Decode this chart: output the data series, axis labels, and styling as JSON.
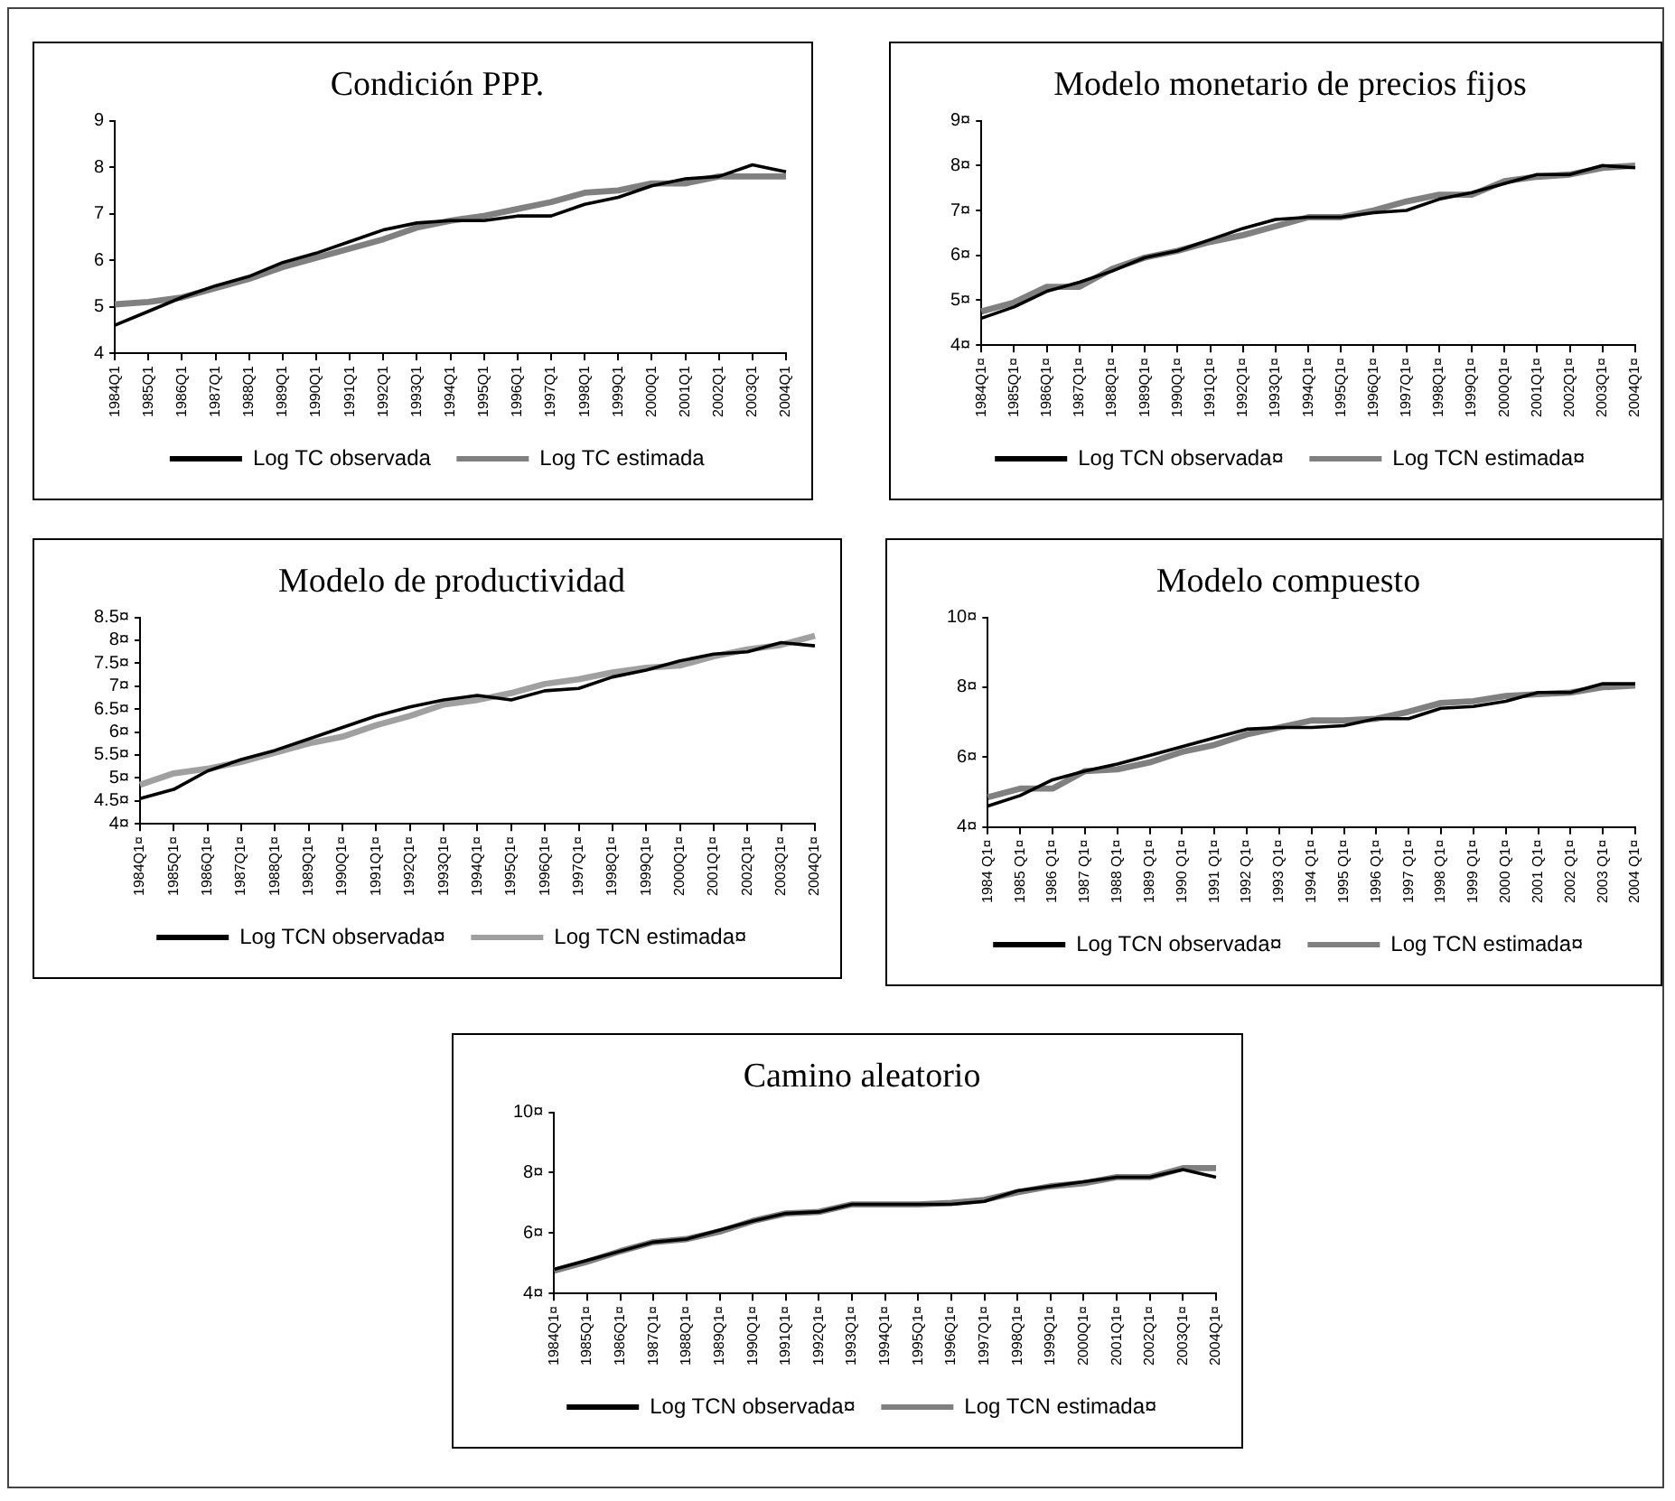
{
  "chart_data": [
    {
      "type": "line",
      "title": "Condición PPP.",
      "categories": [
        "1984Q1",
        "1985Q1",
        "1986Q1",
        "1987Q1",
        "1988Q1",
        "1989Q1",
        "1990Q1",
        "1991Q1",
        "1992Q1",
        "1993Q1",
        "1994Q1",
        "1995Q1",
        "1996Q1",
        "1997Q1",
        "1998Q1",
        "1999Q1",
        "2000Q1",
        "2001Q1",
        "2002Q1",
        "2003Q1",
        "2004Q1"
      ],
      "ylim": [
        4,
        9
      ],
      "yticks": [
        4,
        5,
        6,
        7,
        8,
        9
      ],
      "grid": false,
      "legend": "bottom",
      "marker": "none",
      "series": [
        {
          "name": "Log TC observada",
          "color": "#000000",
          "values": [
            4.6,
            4.9,
            5.2,
            5.45,
            5.65,
            5.95,
            6.15,
            6.4,
            6.65,
            6.8,
            6.85,
            6.85,
            6.95,
            6.95,
            7.2,
            7.35,
            7.6,
            7.75,
            7.8,
            8.05,
            7.9
          ]
        },
        {
          "name": "Log TC estimada",
          "color": "#808080",
          "values": [
            5.05,
            5.1,
            5.2,
            5.4,
            5.6,
            5.85,
            6.05,
            6.25,
            6.45,
            6.7,
            6.85,
            6.95,
            7.1,
            7.25,
            7.45,
            7.5,
            7.65,
            7.65,
            7.8,
            7.8,
            7.8
          ]
        }
      ]
    },
    {
      "type": "line",
      "title": "Modelo monetario de precios fijos",
      "categories": [
        "1984Q1¤",
        "1985Q1¤",
        "1986Q1¤",
        "1987Q1¤",
        "1988Q1¤",
        "1989Q1¤",
        "1990Q1¤",
        "1991Q1¤",
        "1992Q1¤",
        "1993Q1¤",
        "1994Q1¤",
        "1995Q1¤",
        "1996Q1¤",
        "1997Q1¤",
        "1998Q1¤",
        "1999Q1¤",
        "2000Q1¤",
        "2001Q1¤",
        "2002Q1¤",
        "2003Q1¤",
        "2004Q1¤"
      ],
      "ylim": [
        4,
        9
      ],
      "yticks": [
        {
          "value": 4,
          "label": "4¤"
        },
        {
          "value": 5,
          "label": "5¤"
        },
        {
          "value": 6,
          "label": "6¤"
        },
        {
          "value": 7,
          "label": "7¤"
        },
        {
          "value": 8,
          "label": "8¤"
        },
        {
          "value": 9,
          "label": "9¤"
        }
      ],
      "grid": false,
      "legend": "bottom",
      "marker": "none",
      "series": [
        {
          "name": "Log TCN observada¤",
          "color": "#000000",
          "values": [
            4.6,
            4.85,
            5.2,
            5.4,
            5.65,
            5.95,
            6.1,
            6.35,
            6.6,
            6.8,
            6.85,
            6.85,
            6.95,
            7.0,
            7.25,
            7.4,
            7.6,
            7.8,
            7.8,
            8.0,
            7.95
          ]
        },
        {
          "name": "Log TCN estimada¤",
          "color": "#808080",
          "values": [
            4.75,
            4.95,
            5.3,
            5.3,
            5.7,
            5.95,
            6.1,
            6.3,
            6.45,
            6.65,
            6.85,
            6.85,
            7.0,
            7.2,
            7.35,
            7.35,
            7.65,
            7.75,
            7.8,
            7.95,
            8.0
          ]
        }
      ]
    },
    {
      "type": "line",
      "title": "Modelo de productividad",
      "categories": [
        "1984Q1¤",
        "1985Q1¤",
        "1986Q1¤",
        "1987Q1¤",
        "1988Q1¤",
        "1989Q1¤",
        "1990Q1¤",
        "1991Q1¤",
        "1992Q1¤",
        "1993Q1¤",
        "1994Q1¤",
        "1995Q1¤",
        "1996Q1¤",
        "1997Q1¤",
        "1998Q1¤",
        "1999Q1¤",
        "2000Q1¤",
        "2001Q1¤",
        "2002Q1¤",
        "2003Q1¤",
        "2004Q1¤"
      ],
      "ylim": [
        4,
        8.5
      ],
      "yticks": [
        {
          "value": 4,
          "label": "4¤"
        },
        {
          "value": 4.5,
          "label": "4.5¤"
        },
        {
          "value": 5,
          "label": "5¤"
        },
        {
          "value": 5.5,
          "label": "5.5¤"
        },
        {
          "value": 6,
          "label": "6¤"
        },
        {
          "value": 6.5,
          "label": "6.5¤"
        },
        {
          "value": 7,
          "label": "7¤"
        },
        {
          "value": 7.5,
          "label": "7.5¤"
        },
        {
          "value": 8,
          "label": "8¤"
        },
        {
          "value": 8.5,
          "label": "8.5¤"
        }
      ],
      "grid": false,
      "legend": "bottom",
      "marker": "none",
      "series": [
        {
          "name": "Log TCN observada¤",
          "color": "#000000",
          "values": [
            4.55,
            4.75,
            5.15,
            5.4,
            5.6,
            5.85,
            6.1,
            6.35,
            6.55,
            6.7,
            6.8,
            6.7,
            6.9,
            6.95,
            7.2,
            7.35,
            7.55,
            7.7,
            7.75,
            7.95,
            7.88
          ]
        },
        {
          "name": "Log TCN estimada¤",
          "color": "#a0a0a0",
          "values": [
            4.85,
            5.1,
            5.2,
            5.35,
            5.55,
            5.75,
            5.9,
            6.15,
            6.35,
            6.6,
            6.7,
            6.85,
            7.05,
            7.15,
            7.3,
            7.4,
            7.45,
            7.65,
            7.8,
            7.9,
            8.1
          ]
        }
      ]
    },
    {
      "type": "line",
      "title": "Modelo compuesto",
      "categories": [
        "1984 Q1¤",
        "1985 Q1¤",
        "1986 Q1¤",
        "1987 Q1¤",
        "1988 Q1¤",
        "1989 Q1¤",
        "1990 Q1¤",
        "1991 Q1¤",
        "1992 Q1¤",
        "1993 Q1¤",
        "1994 Q1¤",
        "1995 Q1¤",
        "1996 Q1¤",
        "1997 Q1¤",
        "1998 Q1¤",
        "1999 Q1¤",
        "2000 Q1¤",
        "2001 Q1¤",
        "2002 Q1¤",
        "2003 Q1¤",
        "2004 Q1¤"
      ],
      "ylim": [
        4,
        10
      ],
      "yticks": [
        {
          "value": 4,
          "label": "4¤"
        },
        {
          "value": 6,
          "label": "6¤"
        },
        {
          "value": 8,
          "label": "8¤"
        },
        {
          "value": 10,
          "label": "10¤"
        }
      ],
      "grid": false,
      "legend": "bottom",
      "marker": "none",
      "series": [
        {
          "name": "Log TCN observada¤",
          "color": "#000000",
          "values": [
            4.6,
            4.9,
            5.35,
            5.6,
            5.8,
            6.05,
            6.3,
            6.55,
            6.8,
            6.85,
            6.85,
            6.9,
            7.1,
            7.1,
            7.4,
            7.45,
            7.6,
            7.85,
            7.85,
            8.1,
            8.1
          ]
        },
        {
          "name": "Log TCN estimada¤",
          "color": "#808080",
          "values": [
            4.85,
            5.1,
            5.1,
            5.6,
            5.65,
            5.85,
            6.15,
            6.35,
            6.65,
            6.85,
            7.05,
            7.05,
            7.1,
            7.3,
            7.55,
            7.6,
            7.75,
            7.8,
            7.85,
            8.0,
            8.05
          ]
        }
      ]
    },
    {
      "type": "line",
      "title": "Camino aleatorio",
      "categories": [
        "1984Q1¤",
        "1985Q1¤",
        "1986Q1¤",
        "1987Q1¤",
        "1988Q1¤",
        "1989Q1¤",
        "1990Q1¤",
        "1991Q1¤",
        "1992Q1¤",
        "1993Q1¤",
        "1994Q1¤",
        "1995Q1¤",
        "1996Q1¤",
        "1997Q1¤",
        "1998Q1¤",
        "1999Q1¤",
        "2000Q1¤",
        "2001Q1¤",
        "2002Q1¤",
        "2003Q1¤",
        "2004Q1¤"
      ],
      "ylim": [
        4,
        10
      ],
      "yticks": [
        {
          "value": 4,
          "label": "4¤"
        },
        {
          "value": 6,
          "label": "6¤"
        },
        {
          "value": 8,
          "label": "8¤"
        },
        {
          "value": 10,
          "label": "10¤"
        }
      ],
      "grid": false,
      "legend": "bottom",
      "marker": "none",
      "series": [
        {
          "name": "Log TCN observada¤",
          "color": "#000000",
          "values": [
            4.8,
            5.1,
            5.4,
            5.7,
            5.8,
            6.1,
            6.4,
            6.65,
            6.7,
            6.95,
            6.95,
            6.95,
            6.95,
            7.05,
            7.4,
            7.55,
            7.7,
            7.85,
            7.85,
            8.1,
            7.85
          ]
        },
        {
          "name": "Log TCN estimada¤",
          "color": "#808080",
          "values": [
            4.75,
            5.05,
            5.4,
            5.7,
            5.8,
            6.05,
            6.4,
            6.65,
            6.7,
            6.95,
            6.95,
            6.95,
            7.0,
            7.1,
            7.35,
            7.55,
            7.65,
            7.85,
            7.85,
            8.15,
            8.15
          ]
        }
      ]
    }
  ]
}
